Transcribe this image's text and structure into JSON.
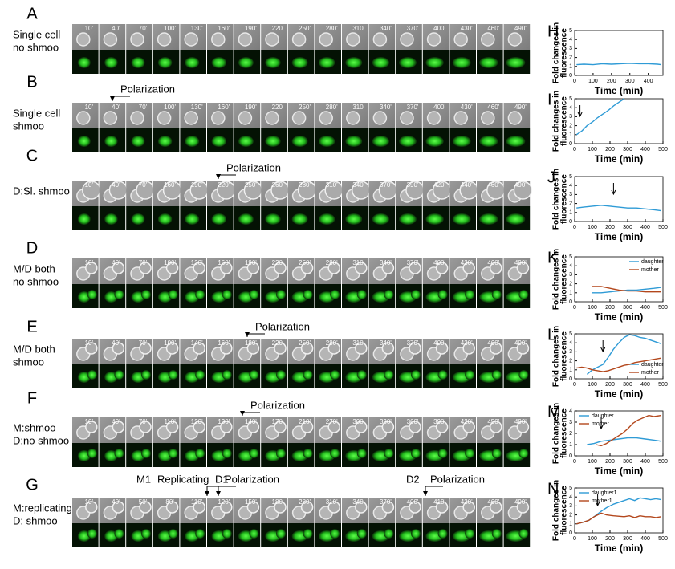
{
  "panels": [
    {
      "letter": "A",
      "label": [
        "Single cell",
        "no shmoo"
      ],
      "times": [
        "10'",
        "40'",
        "70'",
        "100'",
        "130'",
        "160'",
        "190'",
        "220'",
        "250'",
        "280'",
        "310'",
        "340'",
        "370'",
        "400'",
        "430'",
        "460'",
        "490'"
      ],
      "annotations": []
    },
    {
      "letter": "B",
      "label": [
        "Single cell",
        "shmoo"
      ],
      "times": [
        "10'",
        "40'",
        "70'",
        "100'",
        "130'",
        "160'",
        "190'",
        "220'",
        "250'",
        "280'",
        "310'",
        "340'",
        "370'",
        "400'",
        "430'",
        "460'",
        "490'"
      ],
      "annotations": [
        "Polarization"
      ]
    },
    {
      "letter": "C",
      "label": [
        "D:Sl. shmoo"
      ],
      "times": [
        "10'",
        "40'",
        "70'",
        "160'",
        "190'",
        "220'",
        "250'",
        "260'",
        "280'",
        "310'",
        "340'",
        "370'",
        "390'",
        "420'",
        "440'",
        "460'",
        "490'"
      ],
      "annotations": [
        "Polarization"
      ]
    },
    {
      "letter": "D",
      "label": [
        "M/D both",
        "no shmoo"
      ],
      "times": [
        "10'",
        "40'",
        "70'",
        "100'",
        "130'",
        "160'",
        "190'",
        "220'",
        "250'",
        "280'",
        "310'",
        "340'",
        "370'",
        "400'",
        "430'",
        "460'",
        "490'"
      ],
      "annotations": []
    },
    {
      "letter": "E",
      "label": [
        "M/D both",
        "shmoo"
      ],
      "times": [
        "10'",
        "40'",
        "70'",
        "100'",
        "140'",
        "160'",
        "180'",
        "220'",
        "250'",
        "280'",
        "310'",
        "340'",
        "370'",
        "400'",
        "430'",
        "460'",
        "490'"
      ],
      "annotations": [
        "Polarization"
      ]
    },
    {
      "letter": "F",
      "label": [
        "M:shmoo",
        "D:no shmoo"
      ],
      "times": [
        "10'",
        "40'",
        "70'",
        "110'",
        "120'",
        "130'",
        "140'",
        "170'",
        "210'",
        "270'",
        "300'",
        "330'",
        "360'",
        "390'",
        "420'",
        "450'",
        "490'"
      ],
      "annotations": [
        "Polarization"
      ]
    },
    {
      "letter": "G",
      "label": [
        "M:replicating",
        "D: shmoo"
      ],
      "times": [
        "10'",
        "40'",
        "50'",
        "80'",
        "110'",
        "120'",
        "150'",
        "180'",
        "280'",
        "310'",
        "340'",
        "370'",
        "400'",
        "410'",
        "430'",
        "460'",
        "490'"
      ],
      "annotations": [
        "M1",
        "Replicating",
        "D1",
        "Polarization",
        "D2",
        "Polarization"
      ]
    }
  ],
  "chart_data": [
    {
      "type": "line",
      "panel_label": "H",
      "ylabel": [
        "Fold changes in",
        "fluorescence"
      ],
      "xlabel": "Time (min)",
      "xlim": [
        0,
        480
      ],
      "ylim": [
        0,
        5
      ],
      "xticks": [
        0,
        100,
        200,
        300,
        400
      ],
      "yticks": [
        0,
        1,
        2,
        3,
        4,
        5
      ],
      "series": [
        {
          "color": "#2f9bd6",
          "x": [
            10,
            50,
            100,
            150,
            200,
            250,
            300,
            350,
            400,
            450,
            470
          ],
          "values": [
            1.2,
            1.25,
            1.2,
            1.3,
            1.25,
            1.3,
            1.35,
            1.3,
            1.3,
            1.25,
            1.2
          ]
        }
      ]
    },
    {
      "type": "line",
      "panel_label": "I",
      "ylabel": [
        "Fold changes in",
        "fluorescence"
      ],
      "xlabel": "Time (min)",
      "xlim": [
        0,
        500
      ],
      "ylim": [
        0,
        5
      ],
      "xticks": [
        0,
        100,
        200,
        300,
        400,
        500
      ],
      "yticks": [
        0,
        1,
        2,
        3,
        4,
        5
      ],
      "marker_x": 30,
      "series": [
        {
          "color": "#2f9bd6",
          "x": [
            10,
            40,
            70,
            100,
            130,
            160,
            190,
            220,
            250,
            280
          ],
          "values": [
            1,
            1.4,
            2,
            2.4,
            2.9,
            3.3,
            3.7,
            4.2,
            4.6,
            5
          ]
        }
      ]
    },
    {
      "type": "line",
      "panel_label": "J",
      "ylabel": [
        "Fold changes in",
        "fluorescence"
      ],
      "xlabel": "Time (min)",
      "xlim": [
        0,
        500
      ],
      "ylim": [
        0,
        5
      ],
      "xticks": [
        0,
        100,
        200,
        300,
        400,
        500
      ],
      "yticks": [
        0,
        1,
        2,
        3,
        4,
        5
      ],
      "marker_x": 220,
      "series": [
        {
          "color": "#2f9bd6",
          "x": [
            10,
            50,
            100,
            150,
            200,
            250,
            300,
            350,
            400,
            450,
            490
          ],
          "values": [
            1.5,
            1.6,
            1.7,
            1.8,
            1.7,
            1.6,
            1.5,
            1.5,
            1.4,
            1.3,
            1.2
          ]
        }
      ]
    },
    {
      "type": "line",
      "panel_label": "K",
      "ylabel": [
        "Fold changes in",
        "fluorescence"
      ],
      "xlabel": "Time (min)",
      "xlim": [
        0,
        500
      ],
      "ylim": [
        0,
        5
      ],
      "xticks": [
        0,
        100,
        200,
        300,
        400,
        500
      ],
      "yticks": [
        0,
        1,
        2,
        3,
        4,
        5
      ],
      "legend": "upper right",
      "series": [
        {
          "name": "daughter",
          "color": "#2f9bd6",
          "x": [
            100,
            150,
            200,
            250,
            300,
            350,
            400,
            450,
            490
          ],
          "values": [
            1,
            1,
            1.1,
            1.2,
            1.3,
            1.3,
            1.4,
            1.5,
            1.6
          ]
        },
        {
          "name": "mother",
          "color": "#b3471c",
          "x": [
            100,
            150,
            200,
            250,
            300,
            350,
            400,
            450,
            490
          ],
          "values": [
            1.7,
            1.7,
            1.5,
            1.3,
            1.2,
            1.2,
            1.1,
            1.1,
            1.1
          ]
        }
      ]
    },
    {
      "type": "line",
      "panel_label": "L",
      "ylabel": [
        "Fold changes in",
        "fluorescence"
      ],
      "xlabel": "Time (min)",
      "xlim": [
        0,
        500
      ],
      "ylim": [
        0,
        5
      ],
      "xticks": [
        0,
        100,
        200,
        300,
        400,
        500
      ],
      "yticks": [
        0,
        1,
        2,
        3,
        4,
        5
      ],
      "marker_x": 160,
      "legend": "lower right",
      "series": [
        {
          "name": "daughter",
          "color": "#2f9bd6",
          "x": [
            70,
            100,
            130,
            160,
            190,
            220,
            250,
            280,
            310,
            340,
            370,
            400,
            430,
            460,
            490
          ],
          "values": [
            0.5,
            1,
            1.3,
            1.6,
            2.4,
            3.3,
            4,
            4.6,
            4.9,
            4.8,
            4.6,
            4.5,
            4.3,
            4.1,
            3.9
          ]
        },
        {
          "name": "mother",
          "color": "#b3471c",
          "x": [
            10,
            40,
            70,
            100,
            130,
            160,
            190,
            220,
            250,
            280,
            310,
            340,
            370,
            400,
            430,
            460,
            490
          ],
          "values": [
            1.2,
            1.3,
            1.2,
            1,
            0.9,
            0.8,
            0.9,
            1.1,
            1.3,
            1.5,
            1.6,
            1.8,
            1.9,
            2,
            2.1,
            2.2,
            2.3
          ]
        }
      ]
    },
    {
      "type": "line",
      "panel_label": "M",
      "ylabel": [
        "Fold changes in",
        "fluorescence"
      ],
      "xlabel": "Time (min)",
      "xlim": [
        0,
        500
      ],
      "ylim": [
        0,
        4
      ],
      "xticks": [
        0,
        100,
        200,
        300,
        400,
        500
      ],
      "yticks": [
        0,
        1,
        2,
        3,
        4
      ],
      "marker_x": 150,
      "legend": "upper left",
      "series": [
        {
          "name": "daughter",
          "color": "#2f9bd6",
          "x": [
            70,
            110,
            150,
            200,
            250,
            300,
            350,
            400,
            450,
            490
          ],
          "values": [
            1,
            1.1,
            1.3,
            1.4,
            1.5,
            1.6,
            1.6,
            1.5,
            1.4,
            1.3
          ]
        },
        {
          "name": "mother",
          "color": "#b3471c",
          "x": [
            120,
            150,
            180,
            210,
            240,
            270,
            300,
            330,
            360,
            390,
            420,
            450,
            490
          ],
          "values": [
            1,
            0.9,
            1.1,
            1.4,
            1.7,
            2,
            2.4,
            2.9,
            3.2,
            3.4,
            3.6,
            3.5,
            3.6
          ]
        }
      ]
    },
    {
      "type": "line",
      "panel_label": "N",
      "ylabel": [
        "Fold changes in",
        "fluorescence"
      ],
      "xlabel": "Time (min)",
      "xlim": [
        0,
        500
      ],
      "ylim": [
        0,
        5
      ],
      "xticks": [
        0,
        100,
        200,
        300,
        400,
        500
      ],
      "yticks": [
        0,
        1,
        2,
        3,
        4,
        5
      ],
      "marker_x": 130,
      "legend": "upper left",
      "series": [
        {
          "name": "daughter1",
          "color": "#2f9bd6",
          "x": [
            10,
            50,
            80,
            110,
            150,
            180,
            220,
            280,
            310,
            340,
            370,
            400,
            430,
            460,
            490
          ],
          "values": [
            1,
            1.2,
            1.4,
            1.8,
            2.4,
            2.8,
            3.2,
            3.6,
            3.8,
            3.6,
            3.9,
            3.8,
            3.7,
            3.8,
            3.7
          ]
        },
        {
          "name": "mother1",
          "color": "#b3471c",
          "x": [
            10,
            50,
            80,
            110,
            150,
            180,
            220,
            280,
            310,
            340,
            370,
            400,
            430,
            460,
            490
          ],
          "values": [
            1,
            1.2,
            1.4,
            1.8,
            2.2,
            2,
            1.9,
            1.8,
            1.9,
            1.7,
            1.9,
            1.8,
            1.8,
            1.7,
            1.8
          ]
        }
      ]
    }
  ]
}
